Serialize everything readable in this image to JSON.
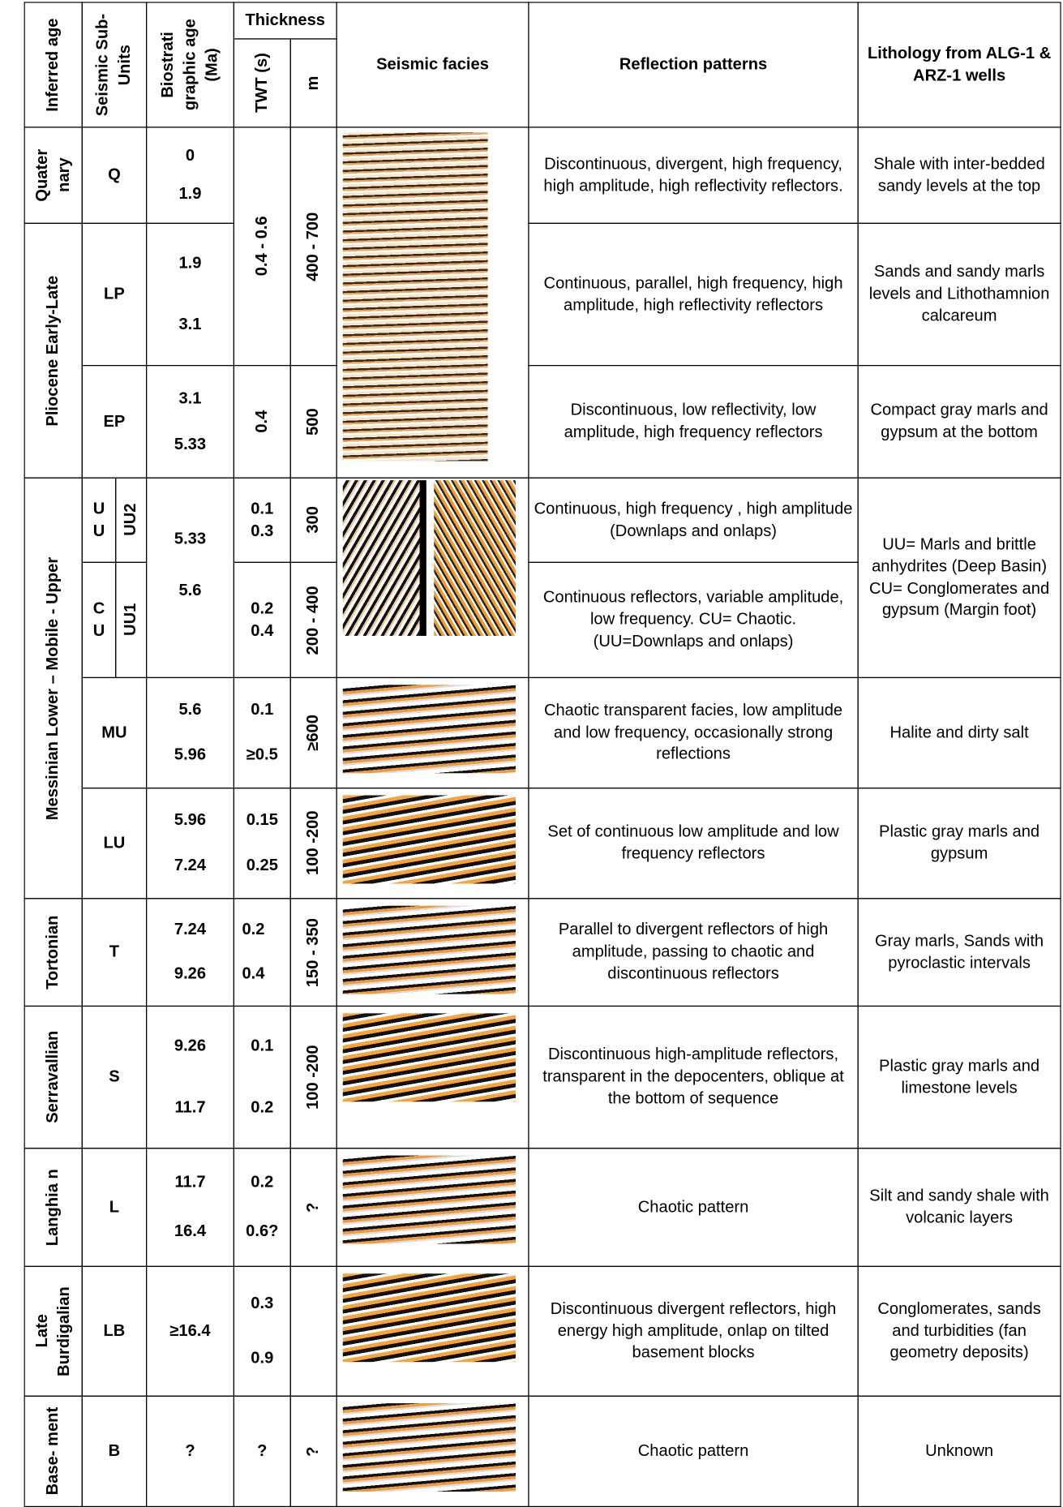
{
  "header": {
    "inferred_age": "Inferred age",
    "seismic_sub_units": "Seismic Sub-Units",
    "biostratigraphic_age": "Biostrati graphic age (Ma)",
    "thickness": "Thickness",
    "twt": "TWT (s)",
    "m": "m",
    "seismic_facies": "Seismic facies",
    "reflection_patterns": "Reflection patterns",
    "lithology": "Lithology from ALG-1 & ARZ-1 wells"
  },
  "ages": [
    "Quater nary",
    "Pliocene Early-Late",
    "Messinian Lower – Mobile - Upper",
    "Tortonian",
    "Serravallian",
    "Langhia n",
    "Late Burdigalian",
    "Base- ment"
  ],
  "units": [
    {
      "unit": "Q",
      "biostrat": [
        "0",
        "1.9"
      ],
      "twt": [
        "0.4 - 0.6"
      ],
      "m": "400 - 700",
      "reflection": "Discontinuous, divergent, high frequency, high amplitude, high reflectivity reflectors.",
      "lithology": "Shale with inter-bedded sandy levels at the top"
    },
    {
      "unit": "LP",
      "biostrat": [
        "1.9",
        "3.1"
      ],
      "reflection": "Continuous, parallel, high frequency, high amplitude, high reflectivity reflectors",
      "lithology": "Sands and sandy marls levels and Lithothamnion calcareum"
    },
    {
      "unit": "EP",
      "biostrat": [
        "3.1",
        "5.33"
      ],
      "twt": [
        "0.4"
      ],
      "m": "500",
      "reflection": "Discontinuous,  low reflectivity, low amplitude, high frequency reflectors",
      "lithology": "Compact gray marls and gypsum at the bottom"
    },
    {
      "group": "U U",
      "unit": "UU2",
      "biostrat": [
        "5.33"
      ],
      "twt": [
        "0.1",
        "0.3"
      ],
      "m": "300",
      "reflection": "Continuous, high frequency , high amplitude (Downlaps and onlaps)",
      "lithology": "UU= Marls and brittle anhydrites (Deep Basin) CU= Conglomerates and gypsum (Margin foot)"
    },
    {
      "group": "C U",
      "unit": "UU1",
      "biostrat": [
        "5.6"
      ],
      "twt": [
        "0.2",
        "0.4"
      ],
      "m": "200 - 400",
      "reflection": "Continuous reflectors, variable amplitude, low frequency. CU= Chaotic. (UU=Downlaps and onlaps)"
    },
    {
      "unit": "MU",
      "biostrat": [
        "5.6",
        "5.96"
      ],
      "twt": [
        "0.1",
        "≥0.5"
      ],
      "m": "≥600",
      "reflection": "Chaotic transparent facies, low amplitude and low frequency, occasionally strong reflections",
      "lithology": "Halite and dirty salt"
    },
    {
      "unit": "LU",
      "biostrat": [
        "5.96",
        "7.24"
      ],
      "twt": [
        "0.15",
        "0.25"
      ],
      "m": "100 -200",
      "reflection": "Set of continuous low amplitude and low frequency reflectors",
      "lithology": "Plastic gray marls and gypsum"
    },
    {
      "unit": "T",
      "biostrat": [
        "7.24",
        "9.26"
      ],
      "twt": [
        "0.2",
        "0.4"
      ],
      "m": "150 - 350",
      "reflection": "Parallel to divergent reflectors of high amplitude, passing to chaotic and discontinuous reflectors",
      "lithology": "Gray marls, Sands with pyroclastic intervals"
    },
    {
      "unit": "S",
      "biostrat": [
        "9.26",
        "11.7"
      ],
      "twt": [
        "0.1",
        "0.2"
      ],
      "m": "100 -200",
      "reflection": "Discontinuous high-amplitude reflectors, transparent in the depocenters, oblique at the bottom of sequence",
      "lithology": "Plastic gray marls and limestone levels"
    },
    {
      "unit": "L",
      "biostrat": [
        "11.7",
        "16.4"
      ],
      "twt": [
        "0.2",
        "0.6?"
      ],
      "m": "?",
      "reflection": "Chaotic pattern",
      "lithology": "Silt and sandy shale with volcanic layers"
    },
    {
      "unit": "LB",
      "biostrat": [
        "≥16.4"
      ],
      "twt": [
        "0.3",
        "0.9"
      ],
      "reflection": "Discontinuous divergent reflectors, high energy high amplitude, onlap on tilted basement blocks",
      "lithology": "Conglomerates, sands and turbidities (fan geometry deposits)"
    },
    {
      "unit": "B",
      "biostrat": [
        "?"
      ],
      "twt": [
        "?"
      ],
      "m": "?",
      "reflection": "Chaotic pattern",
      "lithology": "Unknown"
    }
  ]
}
